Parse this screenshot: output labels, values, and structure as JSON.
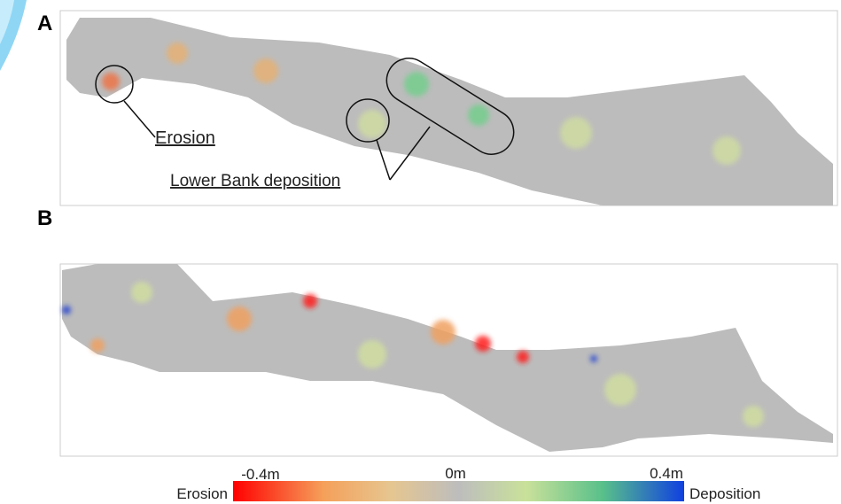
{
  "panels": [
    {
      "label": "A",
      "annotations": [
        "Erosion",
        "Lower Bank deposition"
      ]
    },
    {
      "label": "B"
    }
  ],
  "legend": {
    "ticks": [
      "-0.4m",
      "0m",
      "0.4m"
    ],
    "low_label": "Erosion",
    "high_label": "Deposition"
  }
}
